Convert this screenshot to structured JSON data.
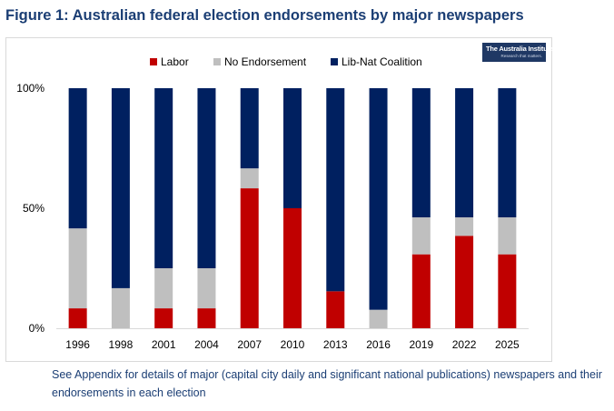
{
  "figure": {
    "title": "Figure 1: Australian federal election endorsements by major newspapers",
    "footnote": "See Appendix for details of major (capital city daily and significant national publications) newspapers and their endorsements in each election"
  },
  "logo": {
    "name": "The Australia Institute",
    "tagline": "Research that matters."
  },
  "colors": {
    "labor": "#c00000",
    "none": "#bfbfbf",
    "coalition": "#002060",
    "title": "#1b3e74"
  },
  "chart_data": {
    "type": "bar",
    "stacked": true,
    "normalized": true,
    "title": "Figure 1: Australian federal election endorsements by major newspapers",
    "xlabel": "",
    "ylabel": "",
    "ylim": [
      0,
      100
    ],
    "y_ticks": [
      0,
      50,
      100
    ],
    "y_tick_labels": [
      "0%",
      "50%",
      "100%"
    ],
    "grid": false,
    "legend_position": "top-center",
    "categories": [
      "1996",
      "1998",
      "2001",
      "2004",
      "2007",
      "2010",
      "2013",
      "2016",
      "2019",
      "2022",
      "2025"
    ],
    "series": [
      {
        "name": "Labor",
        "color": "#c00000",
        "values": [
          8.3,
          0,
          8.3,
          8.3,
          58.3,
          50,
          15.4,
          0,
          30.8,
          38.5,
          30.8
        ]
      },
      {
        "name": "No Endorsement",
        "color": "#bfbfbf",
        "values": [
          33.3,
          16.7,
          16.7,
          16.7,
          8.3,
          0,
          0,
          7.7,
          15.4,
          7.7,
          15.4
        ]
      },
      {
        "name": "Lib-Nat Coalition",
        "color": "#002060",
        "values": [
          58.4,
          83.3,
          75,
          75,
          33.4,
          50,
          84.6,
          92.3,
          53.8,
          53.8,
          53.8
        ]
      }
    ]
  }
}
